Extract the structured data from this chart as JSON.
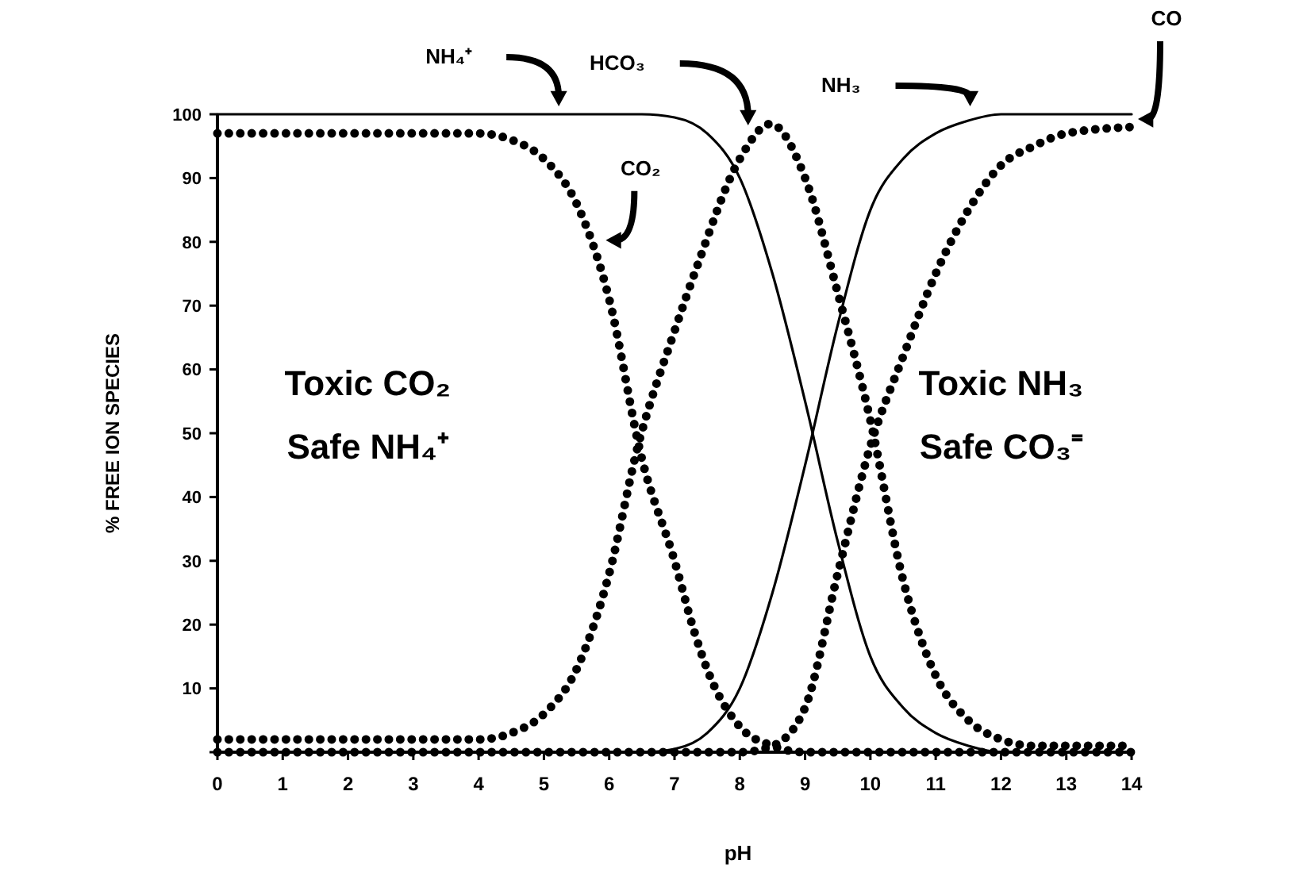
{
  "chart_data": {
    "type": "line",
    "xlabel": "pH",
    "ylabel": "% FREE ION SPECIES",
    "xlim": [
      0,
      14
    ],
    "ylim": [
      0,
      100
    ],
    "xticks": [
      0,
      1,
      2,
      3,
      4,
      5,
      6,
      7,
      8,
      9,
      10,
      11,
      12,
      13,
      14
    ],
    "yticks": [
      {
        "value": 0,
        "label": null
      },
      10,
      20,
      30,
      40,
      50,
      60,
      70,
      80,
      90,
      100
    ],
    "grid": false,
    "series": [
      {
        "color": "#000000",
        "line_style": "solid",
        "x": [
          0,
          6.5,
          7,
          7.5,
          8,
          8.5,
          9,
          9.5,
          10,
          10.5,
          11,
          11.5,
          12,
          12.5,
          14
        ],
        "values": [
          100,
          100,
          99.5,
          97,
          90,
          75,
          55,
          33,
          15,
          7,
          3,
          1,
          0,
          0,
          0
        ]
      },
      {
        "color": "#000000",
        "line_style": "solid",
        "x": [
          0,
          6.5,
          7,
          7.5,
          8,
          8.5,
          9,
          9.5,
          10,
          10.5,
          11,
          11.5,
          12,
          12.5,
          14
        ],
        "values": [
          0,
          0,
          0.5,
          3,
          10,
          25,
          45,
          67,
          85,
          93,
          97,
          99,
          100,
          100,
          100
        ]
      },
      {
        "color": "#000000",
        "line_style": "dotted",
        "x": [
          0,
          4,
          4.5,
          5,
          5.5,
          6,
          6.5,
          7,
          7.3,
          7.5,
          8,
          8.5,
          9,
          14
        ],
        "values": [
          97,
          97,
          96,
          93,
          86,
          71,
          46,
          30,
          19,
          13,
          4,
          1,
          0,
          0
        ]
      },
      {
        "color": "#000000",
        "line_style": "dotted",
        "x": [
          0,
          4,
          4.5,
          5,
          5.5,
          6,
          6.44,
          7,
          7.34,
          8,
          8.47,
          9,
          9.5,
          10,
          10.5,
          11,
          11.5,
          12,
          12.5,
          13,
          14
        ],
        "values": [
          2,
          2,
          3,
          6,
          13,
          28,
          48,
          66,
          76,
          93,
          98.5,
          90,
          72,
          52,
          27,
          12,
          5,
          2,
          1,
          1,
          1
        ]
      },
      {
        "color": "#000000",
        "line_style": "dotted",
        "x": [
          0,
          8,
          8.5,
          9,
          9.5,
          10,
          10.5,
          11,
          11.5,
          12,
          12.5,
          13,
          14
        ],
        "values": [
          0,
          0,
          1,
          7,
          28,
          48,
          62,
          75,
          85,
          92,
          95,
          97,
          98
        ]
      }
    ],
    "annotations": [
      "NH₄⁺",
      "HCO₃",
      "NH₃",
      "CO",
      "CO₂",
      "Toxic CO₂",
      "Safe NH₄⁺",
      "Toxic NH₃",
      "Safe CO₃⁼"
    ]
  }
}
